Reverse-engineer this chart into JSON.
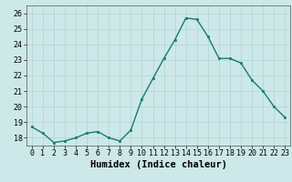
{
  "title": "",
  "xlabel": "Humidex (Indice chaleur)",
  "ylabel": "",
  "x": [
    0,
    1,
    2,
    3,
    4,
    5,
    6,
    7,
    8,
    9,
    10,
    11,
    12,
    13,
    14,
    15,
    16,
    17,
    18,
    19,
    20,
    21,
    22,
    23
  ],
  "y": [
    18.7,
    18.3,
    17.7,
    17.8,
    18.0,
    18.3,
    18.4,
    18.0,
    17.8,
    18.5,
    20.5,
    21.8,
    23.1,
    24.3,
    25.7,
    25.6,
    24.5,
    23.1,
    23.1,
    22.8,
    21.7,
    21.0,
    20.0,
    19.3
  ],
  "line_color": "#1a7a6e",
  "marker": "s",
  "marker_size": 2.0,
  "bg_color": "#cde8e8",
  "grid_color": "#b0d4d4",
  "ylim": [
    17.5,
    26.5
  ],
  "yticks": [
    18,
    19,
    20,
    21,
    22,
    23,
    24,
    25,
    26
  ],
  "xlim": [
    -0.5,
    23.5
  ],
  "xlabel_fontsize": 7.5,
  "tick_fontsize": 6.0,
  "linewidth": 1.0
}
